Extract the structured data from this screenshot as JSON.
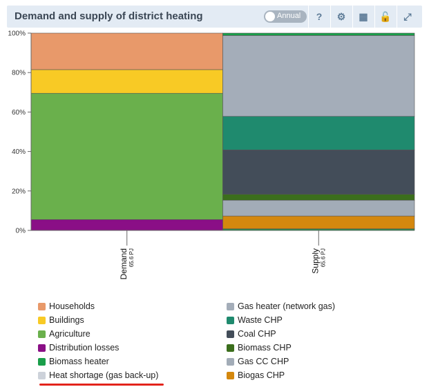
{
  "header": {
    "title": "Demand and supply of district heating",
    "toggle_label": "Annual",
    "tools": [
      {
        "name": "help-icon",
        "glyph": "?"
      },
      {
        "name": "settings-icon",
        "glyph": "⚙"
      },
      {
        "name": "table-icon",
        "glyph": "▦"
      },
      {
        "name": "unlock-icon",
        "glyph": "🔓"
      },
      {
        "name": "expand-icon",
        "glyph": "⤢"
      }
    ]
  },
  "chart_data": {
    "type": "bar",
    "stacked": true,
    "normalized_percent": true,
    "ylim": [
      0,
      100
    ],
    "yticks": [
      "0%",
      "20%",
      "40%",
      "60%",
      "80%",
      "100%"
    ],
    "categories": [
      {
        "label": "Demand",
        "sub": "65.6 PJ"
      },
      {
        "label": "Supply",
        "sub": "65.6 PJ"
      }
    ],
    "series": [
      {
        "name": "Distribution losses",
        "color": "#8a0f86",
        "values": [
          5.5,
          0
        ]
      },
      {
        "name": "Agriculture",
        "color": "#6ab04c",
        "values": [
          64.0,
          0
        ]
      },
      {
        "name": "Buildings",
        "color": "#f8ca25",
        "values": [
          12.0,
          0
        ]
      },
      {
        "name": "Households",
        "color": "#e8996a",
        "values": [
          18.5,
          0
        ]
      },
      {
        "name": "Biomass heater",
        "color": "#1a9e4a",
        "values": [
          0,
          0.7
        ]
      },
      {
        "name": "Heat shortage (gas back-up)",
        "color": "#cdd2da",
        "values": [
          0,
          0.1
        ]
      },
      {
        "name": "Biogas CHP",
        "color": "#d4880e",
        "values": [
          0,
          6.5
        ]
      },
      {
        "name": "Gas CC CHP",
        "color": "#a2acb7",
        "values": [
          0,
          8.0
        ]
      },
      {
        "name": "Biomass CHP",
        "color": "#3b6e1c",
        "values": [
          0,
          3.0
        ]
      },
      {
        "name": "Coal CHP",
        "color": "#434d59",
        "values": [
          0,
          22.5
        ]
      },
      {
        "name": "Waste CHP",
        "color": "#1f8a6e",
        "values": [
          0,
          17.0
        ]
      },
      {
        "name": "Gas heater (network gas)",
        "color": "#a4adb9",
        "values": [
          0,
          41.0
        ]
      },
      {
        "name": "Biomass heater",
        "color": "#1a9e4a",
        "values": [
          0,
          1.2
        ]
      }
    ]
  },
  "legend": {
    "left": [
      {
        "label": "Households",
        "color": "#e8996a"
      },
      {
        "label": "Buildings",
        "color": "#f8ca25"
      },
      {
        "label": "Agriculture",
        "color": "#6ab04c"
      },
      {
        "label": "Distribution losses",
        "color": "#8a0f86"
      },
      {
        "label": "Biomass heater",
        "color": "#1a9e4a"
      },
      {
        "label": "Heat shortage (gas back-up)",
        "color": "#cdd2da"
      }
    ],
    "right": [
      {
        "label": "Gas heater (network gas)",
        "color": "#a4adb9"
      },
      {
        "label": "Waste CHP",
        "color": "#1f8a6e"
      },
      {
        "label": "Coal CHP",
        "color": "#434d59"
      },
      {
        "label": "Biomass CHP",
        "color": "#3b6e1c"
      },
      {
        "label": "Gas CC CHP",
        "color": "#a2acb7"
      },
      {
        "label": "Biogas CHP",
        "color": "#d4880e"
      }
    ]
  }
}
